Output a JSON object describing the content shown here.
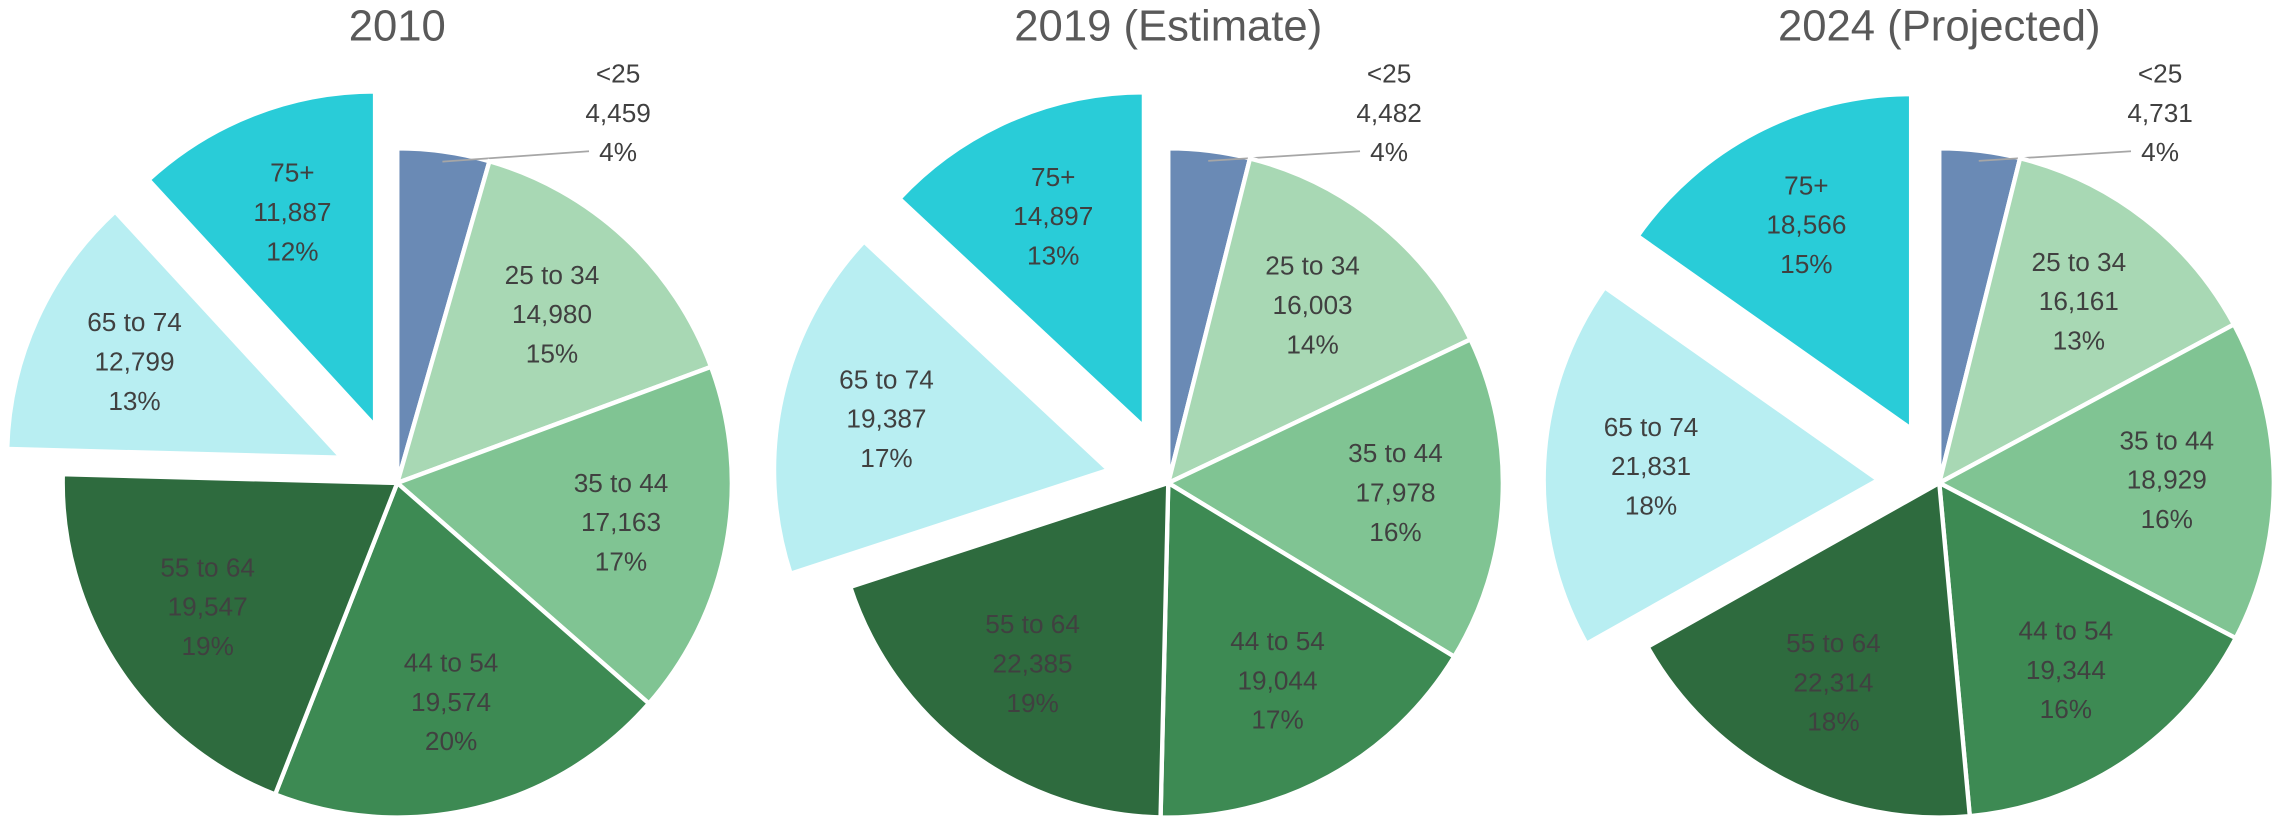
{
  "chart_data": [
    {
      "type": "pie",
      "title": "2010",
      "categories": [
        "<25",
        "25 to 34",
        "35 to 44",
        "44 to 54",
        "55 to 64",
        "65 to 74",
        "75+"
      ],
      "values": [
        4459,
        14980,
        17163,
        19574,
        19547,
        12799,
        11887
      ],
      "value_labels": [
        "4,459",
        "14,980",
        "17,163",
        "19,574",
        "19,547",
        "12,799",
        "11,887"
      ],
      "percent_labels": [
        "4%",
        "15%",
        "17%",
        "20%",
        "19%",
        "13%",
        "12%"
      ],
      "colors": [
        "#6a8ab5",
        "#a8d8b4",
        "#80c493",
        "#3d8a53",
        "#2e6b3e",
        "#b8eef2",
        "#29ccd8"
      ],
      "explode": [
        false,
        false,
        false,
        false,
        false,
        true,
        true
      ]
    },
    {
      "type": "pie",
      "title": "2019 (Estimate)",
      "categories": [
        "<25",
        "25 to 34",
        "35 to 44",
        "44 to 54",
        "55 to 64",
        "65 to 74",
        "75+"
      ],
      "values": [
        4482,
        16003,
        17978,
        19044,
        22385,
        19387,
        14897
      ],
      "value_labels": [
        "4,482",
        "16,003",
        "17,978",
        "19,044",
        "22,385",
        "19,387",
        "14,897"
      ],
      "percent_labels": [
        "4%",
        "14%",
        "16%",
        "17%",
        "19%",
        "17%",
        "13%"
      ],
      "colors": [
        "#6a8ab5",
        "#a8d8b4",
        "#80c493",
        "#3d8a53",
        "#2e6b3e",
        "#b8eef2",
        "#29ccd8"
      ],
      "explode": [
        false,
        false,
        false,
        false,
        false,
        true,
        true
      ]
    },
    {
      "type": "pie",
      "title": "2024 (Projected)",
      "categories": [
        "<25",
        "25 to 34",
        "35 to 44",
        "44 to 54",
        "55 to 64",
        "65 to 74",
        "75+"
      ],
      "values": [
        4731,
        16161,
        18929,
        19344,
        22314,
        21831,
        18566
      ],
      "value_labels": [
        "4,731",
        "16,161",
        "18,929",
        "19,344",
        "22,314",
        "21,831",
        "18,566"
      ],
      "percent_labels": [
        "4%",
        "13%",
        "16%",
        "16%",
        "18%",
        "18%",
        "15%"
      ],
      "colors": [
        "#6a8ab5",
        "#a8d8b4",
        "#80c493",
        "#3d8a53",
        "#2e6b3e",
        "#b8eef2",
        "#29ccd8"
      ],
      "explode": [
        false,
        false,
        false,
        false,
        false,
        true,
        true
      ]
    }
  ]
}
